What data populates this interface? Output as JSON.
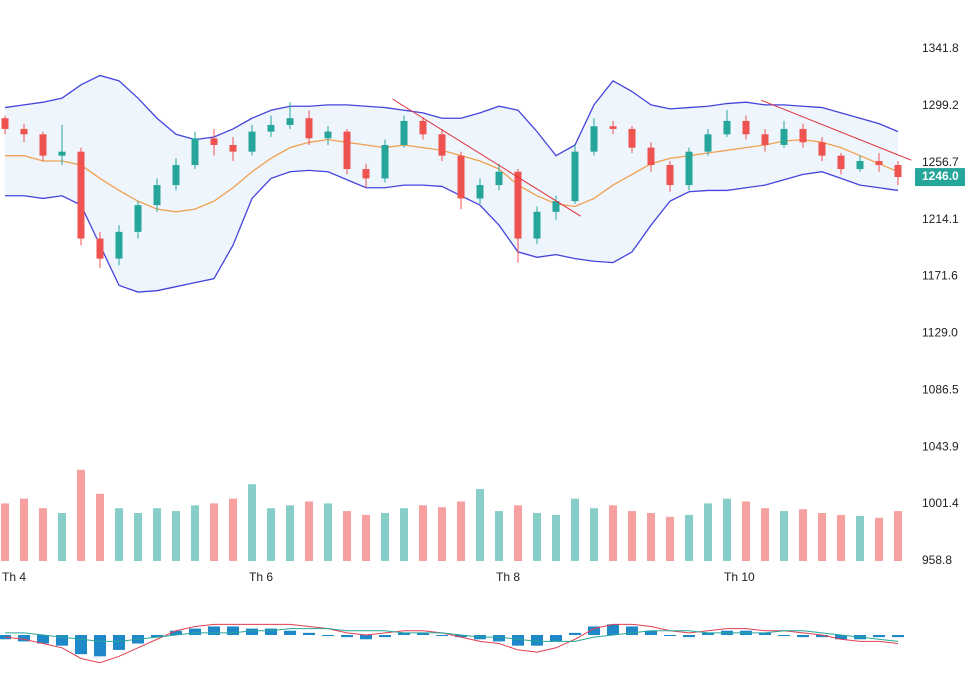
{
  "chart_data": {
    "type": "candlestick",
    "categories": [
      "Th 4",
      null,
      null,
      null,
      null,
      null,
      null,
      null,
      null,
      null,
      null,
      null,
      null,
      "Th 6",
      null,
      null,
      null,
      null,
      null,
      null,
      null,
      null,
      null,
      null,
      null,
      null,
      "Th 8",
      null,
      null,
      null,
      null,
      null,
      null,
      null,
      null,
      null,
      null,
      null,
      "Th 10",
      null,
      null,
      null,
      null,
      null,
      null,
      null,
      null,
      null
    ],
    "open": [
      1290,
      1282,
      1278,
      1262,
      1265,
      1200,
      1185,
      1205,
      1225,
      1240,
      1255,
      1275,
      1270,
      1265,
      1280,
      1285,
      1290,
      1275,
      1280,
      1252,
      1245,
      1270,
      1288,
      1278,
      1262,
      1230,
      1240,
      1250,
      1200,
      1220,
      1228,
      1265,
      1284,
      1282,
      1268,
      1255,
      1240,
      1265,
      1278,
      1288,
      1278,
      1270,
      1282,
      1272,
      1262,
      1252,
      1258,
      1255
    ],
    "high": [
      1292,
      1286,
      1280,
      1285,
      1268,
      1205,
      1210,
      1228,
      1245,
      1260,
      1280,
      1282,
      1276,
      1285,
      1292,
      1302,
      1296,
      1284,
      1282,
      1256,
      1274,
      1292,
      1290,
      1282,
      1265,
      1245,
      1256,
      1252,
      1224,
      1232,
      1270,
      1290,
      1288,
      1284,
      1272,
      1258,
      1268,
      1282,
      1296,
      1292,
      1282,
      1288,
      1286,
      1276,
      1264,
      1262,
      1264,
      1258
    ],
    "low": [
      1278,
      1272,
      1258,
      1255,
      1195,
      1178,
      1180,
      1200,
      1220,
      1236,
      1252,
      1262,
      1258,
      1262,
      1276,
      1282,
      1270,
      1270,
      1248,
      1238,
      1242,
      1268,
      1274,
      1258,
      1222,
      1226,
      1236,
      1182,
      1196,
      1214,
      1226,
      1262,
      1278,
      1264,
      1250,
      1235,
      1236,
      1262,
      1276,
      1274,
      1265,
      1268,
      1268,
      1258,
      1248,
      1250,
      1250,
      1240
    ],
    "close": [
      1282,
      1278,
      1262,
      1265,
      1200,
      1185,
      1205,
      1225,
      1240,
      1255,
      1275,
      1270,
      1265,
      1280,
      1285,
      1290,
      1275,
      1280,
      1252,
      1245,
      1270,
      1288,
      1278,
      1262,
      1230,
      1240,
      1250,
      1200,
      1220,
      1228,
      1265,
      1284,
      1282,
      1268,
      1255,
      1240,
      1265,
      1278,
      1288,
      1278,
      1270,
      1282,
      1272,
      1262,
      1252,
      1258,
      1255,
      1246
    ],
    "up_color": "#26a69a",
    "down_color": "#ef5350",
    "band_upper": [
      1298,
      1300,
      1302,
      1305,
      1315,
      1322,
      1318,
      1305,
      1290,
      1278,
      1274,
      1276,
      1282,
      1290,
      1296,
      1299,
      1299,
      1300,
      1300,
      1299,
      1298,
      1296,
      1294,
      1290,
      1290,
      1294,
      1299,
      1296,
      1280,
      1262,
      1270,
      1300,
      1318,
      1310,
      1300,
      1297,
      1298,
      1299,
      1301,
      1302,
      1300,
      1300,
      1299,
      1298,
      1294,
      1290,
      1286,
      1280
    ],
    "band_middle": [
      1262,
      1262,
      1258,
      1258,
      1255,
      1245,
      1236,
      1228,
      1222,
      1220,
      1222,
      1228,
      1238,
      1250,
      1260,
      1268,
      1272,
      1274,
      1272,
      1270,
      1268,
      1270,
      1268,
      1266,
      1262,
      1258,
      1252,
      1240,
      1232,
      1226,
      1224,
      1230,
      1240,
      1248,
      1256,
      1260,
      1262,
      1264,
      1266,
      1268,
      1270,
      1273,
      1274,
      1272,
      1268,
      1262,
      1256,
      1250
    ],
    "band_lower": [
      1232,
      1232,
      1230,
      1232,
      1225,
      1195,
      1165,
      1160,
      1161,
      1164,
      1167,
      1170,
      1195,
      1230,
      1245,
      1250,
      1251,
      1250,
      1244,
      1238,
      1238,
      1240,
      1240,
      1239,
      1232,
      1225,
      1210,
      1190,
      1186,
      1188,
      1185,
      1183,
      1182,
      1190,
      1210,
      1228,
      1235,
      1236,
      1236,
      1238,
      1240,
      1244,
      1248,
      1250,
      1245,
      1240,
      1238,
      1236
    ],
    "band_color": "#4444dd",
    "middle_color": "#f0a050",
    "band_fill": "#eef5fc",
    "trendlines": [
      {
        "x": [
          20.4,
          30.3
        ],
        "y": [
          1304.3,
          1216.7
        ],
        "color": "#e0303a"
      },
      {
        "x": [
          39.8,
          47.7
        ],
        "y": [
          1303.5,
          1258.6
        ],
        "color": "#e0303a"
      }
    ],
    "ylim": [
      958.8,
      1341.8
    ],
    "yticks": [
      1341.8,
      1299.2,
      1256.7,
      1214.1,
      1171.6,
      {
        "value": 1129.0,
        "label": "1129.0"
      },
      1086.5,
      1043.9,
      1001.4,
      958.8
    ],
    "last_price": 1246,
    "last_price_label": "1246.0",
    "last_price_color": "#26a69a",
    "volume": [
      60,
      65,
      55,
      50,
      95,
      70,
      55,
      50,
      55,
      52,
      58,
      60,
      65,
      80,
      55,
      58,
      62,
      60,
      52,
      48,
      50,
      55,
      58,
      56,
      62,
      75,
      52,
      58,
      50,
      48,
      65,
      55,
      58,
      52,
      50,
      46,
      48,
      60,
      65,
      62,
      55,
      52,
      54,
      50,
      48,
      47,
      45,
      52
    ],
    "volume_ylim": [
      0,
      100
    ],
    "macd": [
      -0.1,
      -0.2,
      -0.4,
      -0.6,
      -1.1,
      -1.3,
      -1.0,
      -0.6,
      -0.2,
      0.2,
      0.4,
      0.5,
      0.5,
      0.5,
      0.5,
      0.5,
      0.4,
      0.3,
      0.1,
      0,
      0.1,
      0.2,
      0.2,
      0.1,
      -0.1,
      -0.3,
      -0.4,
      -0.7,
      -0.8,
      -0.6,
      -0.2,
      0.3,
      0.5,
      0.5,
      0.4,
      0.2,
      0.1,
      0.2,
      0.3,
      0.3,
      0.2,
      0.2,
      0.1,
      0,
      -0.2,
      -0.3,
      -0.3,
      -0.4
    ],
    "signal": [
      0.1,
      0.1,
      0,
      -0.1,
      -0.2,
      -0.3,
      -0.3,
      -0.2,
      -0.1,
      0,
      0.1,
      0.1,
      0.1,
      0.2,
      0.2,
      0.3,
      0.3,
      0.3,
      0.2,
      0.2,
      0.2,
      0.1,
      0.1,
      0.1,
      0,
      -0.1,
      -0.1,
      -0.2,
      -0.3,
      -0.3,
      -0.3,
      -0.1,
      0,
      0.1,
      0.2,
      0.2,
      0.2,
      0.1,
      0.1,
      0.1,
      0.1,
      0.2,
      0.2,
      0.1,
      0,
      -0.1,
      -0.2,
      -0.3
    ],
    "histogram": [
      -0.2,
      -0.3,
      -0.4,
      -0.5,
      -0.9,
      -1.0,
      -0.7,
      -0.4,
      -0.1,
      0.2,
      0.3,
      0.4,
      0.4,
      0.3,
      0.3,
      0.2,
      0.1,
      0,
      -0.1,
      -0.2,
      -0.1,
      0.1,
      0.1,
      0,
      -0.1,
      -0.2,
      -0.3,
      -0.5,
      -0.5,
      -0.3,
      0.1,
      0.4,
      0.5,
      0.4,
      0.2,
      0,
      -0.1,
      0.1,
      0.2,
      0.2,
      0.1,
      0,
      -0.1,
      -0.1,
      -0.2,
      -0.2,
      -0.1,
      -0.1
    ],
    "macd_ylim": [
      -1.5,
      1.5
    ],
    "macd_color": "#e04050",
    "signal_color": "#26a69a",
    "histogram_color": "#1e88c8"
  }
}
